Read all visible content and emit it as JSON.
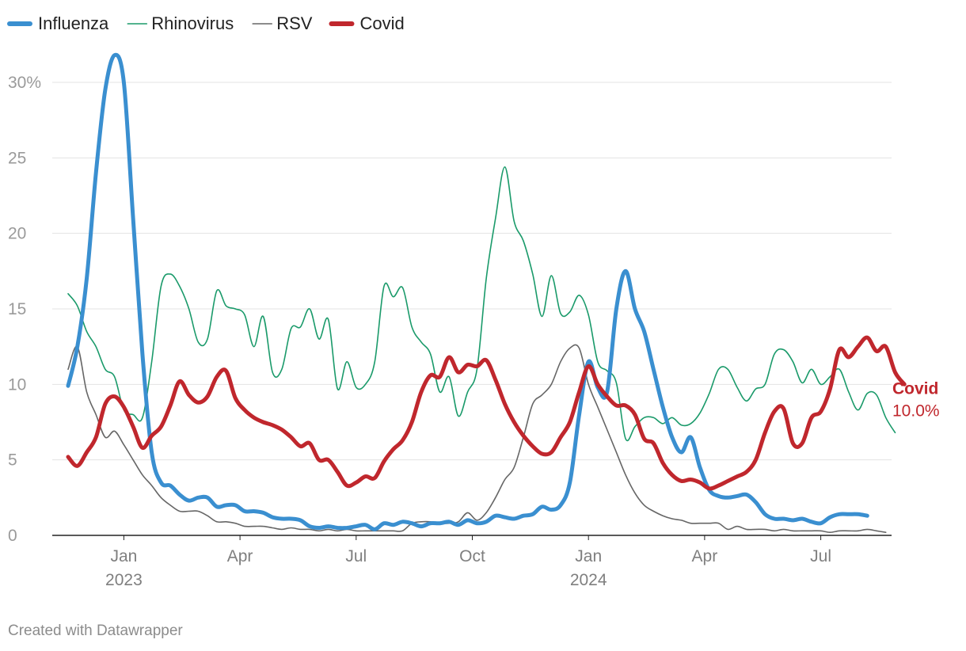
{
  "chart_data": {
    "type": "line",
    "title": "",
    "xlabel": "",
    "ylabel": "",
    "ylim": [
      0,
      32
    ],
    "y_ticks": [
      {
        "value": 0,
        "label": "0"
      },
      {
        "value": 5,
        "label": "5"
      },
      {
        "value": 10,
        "label": "10"
      },
      {
        "value": 15,
        "label": "15"
      },
      {
        "value": 20,
        "label": "20"
      },
      {
        "value": 25,
        "label": "25"
      },
      {
        "value": 30,
        "label": "30%"
      }
    ],
    "x_range": [
      0,
      87
    ],
    "x_unit": "weeks since 2022-11-14",
    "x_ticks": [
      {
        "week": 6,
        "label": "Jan",
        "sublabel": "2023"
      },
      {
        "week": 18.5,
        "label": "Apr",
        "sublabel": ""
      },
      {
        "week": 31,
        "label": "Jul",
        "sublabel": ""
      },
      {
        "week": 43.5,
        "label": "Oct",
        "sublabel": ""
      },
      {
        "week": 56,
        "label": "Jan",
        "sublabel": "2024"
      },
      {
        "week": 68.5,
        "label": "Apr",
        "sublabel": ""
      },
      {
        "week": 81,
        "label": "Jul",
        "sublabel": ""
      }
    ],
    "legend_position": "top-left",
    "series": [
      {
        "name": "Influenza",
        "color": "#3a8fd0",
        "width": 5,
        "values": [
          9.9,
          12.5,
          17,
          24,
          29.5,
          31.8,
          30,
          21,
          12,
          5.5,
          3.5,
          3.3,
          2.7,
          2.3,
          2.5,
          2.5,
          1.9,
          2,
          2,
          1.6,
          1.6,
          1.5,
          1.2,
          1.1,
          1.1,
          1,
          0.6,
          0.5,
          0.6,
          0.5,
          0.5,
          0.6,
          0.7,
          0.4,
          0.8,
          0.7,
          0.9,
          0.8,
          0.6,
          0.8,
          0.8,
          0.9,
          0.7,
          1,
          0.8,
          0.9,
          1.3,
          1.2,
          1.1,
          1.3,
          1.4,
          1.9,
          1.7,
          2,
          3.5,
          8,
          11.5,
          9.8,
          9.5,
          15,
          17.5,
          15,
          13.5,
          11,
          8.5,
          6.5,
          5.5,
          6.5,
          4.5,
          3,
          2.6,
          2.5,
          2.6,
          2.7,
          2.2,
          1.4,
          1.1,
          1.1,
          1,
          1.1,
          0.9,
          0.8,
          1.2,
          1.4,
          1.4,
          1.4,
          1.3
        ]
      },
      {
        "name": "Rhinovirus",
        "color": "#1a9a6a",
        "width": 1.6,
        "values": [
          16,
          15.2,
          13.5,
          12.5,
          11,
          10.5,
          8.3,
          8,
          7.8,
          11.5,
          16.5,
          17.3,
          16.5,
          15,
          12.8,
          13,
          16.2,
          15.2,
          15,
          14.6,
          12.5,
          14.5,
          10.8,
          11,
          13.7,
          13.8,
          15,
          13,
          14.3,
          9.7,
          11.5,
          9.8,
          10,
          11.5,
          16.5,
          15.8,
          16.4,
          13.8,
          12.8,
          12,
          9.5,
          10.5,
          7.9,
          9.5,
          11,
          17,
          21,
          24.4,
          20.8,
          19.5,
          17.3,
          14.5,
          17.2,
          14.7,
          14.8,
          15.9,
          14.6,
          11.5,
          10.9,
          10.1,
          6.4,
          7.2,
          7.8,
          7.8,
          7.4,
          7.8,
          7.3,
          7.4,
          8.1,
          9.4,
          11,
          11,
          9.8,
          8.9,
          9.7,
          10,
          12,
          12.3,
          11.5,
          10.1,
          11,
          10,
          10.5,
          11,
          9.5,
          8.3,
          9.4,
          9.3,
          7.8,
          6.8
        ]
      },
      {
        "name": "RSV",
        "color": "#666666",
        "width": 1.6,
        "values": [
          11,
          12.5,
          9.5,
          8,
          6.5,
          6.9,
          6,
          5,
          4,
          3.3,
          2.5,
          2,
          1.6,
          1.6,
          1.6,
          1.3,
          0.9,
          0.9,
          0.8,
          0.6,
          0.6,
          0.6,
          0.5,
          0.4,
          0.5,
          0.4,
          0.4,
          0.3,
          0.4,
          0.3,
          0.4,
          0.3,
          0.3,
          0.3,
          0.3,
          0.3,
          0.3,
          0.8,
          0.9,
          0.9,
          0.8,
          0.8,
          0.9,
          1.5,
          1,
          1.5,
          2.5,
          3.7,
          4.5,
          6.5,
          8.7,
          9.3,
          10,
          11.5,
          12.4,
          12.4,
          10,
          8.5,
          7,
          5.5,
          4,
          2.8,
          2,
          1.6,
          1.3,
          1.1,
          1,
          0.8,
          0.8,
          0.8,
          0.8,
          0.4,
          0.6,
          0.4,
          0.4,
          0.4,
          0.3,
          0.4,
          0.3,
          0.3,
          0.3,
          0.3,
          0.2,
          0.3,
          0.3,
          0.3,
          0.4,
          0.3,
          0.2
        ]
      },
      {
        "name": "Covid",
        "color": "#c0272d",
        "width": 5,
        "values": [
          5.2,
          4.6,
          5.5,
          6.5,
          8.7,
          9.2,
          8.5,
          7.2,
          5.8,
          6.6,
          7.2,
          8.6,
          10.2,
          9.3,
          8.8,
          9.2,
          10.5,
          10.9,
          9.1,
          8.3,
          7.8,
          7.5,
          7.3,
          7,
          6.5,
          5.9,
          6.1,
          5,
          5,
          4.2,
          3.3,
          3.5,
          3.9,
          3.8,
          4.9,
          5.7,
          6.3,
          7.5,
          9.5,
          10.6,
          10.5,
          11.8,
          10.8,
          11.3,
          11.2,
          11.6,
          10.3,
          8.7,
          7.5,
          6.6,
          5.9,
          5.4,
          5.5,
          6.5,
          7.5,
          9.5,
          11.2,
          10,
          9.2,
          8.6,
          8.6,
          8,
          6.4,
          6.1,
          4.8,
          4,
          3.6,
          3.7,
          3.5,
          3.1,
          3.3,
          3.6,
          3.9,
          4.2,
          5,
          6.8,
          8.2,
          8.4,
          6.1,
          6.1,
          7.8,
          8.2,
          9.7,
          12.3,
          11.8,
          12.5,
          13.1,
          12.2,
          12.5,
          10.8,
          10
        ]
      }
    ],
    "end_label": {
      "series": "Covid",
      "name": "Covid",
      "value": "10.0%"
    }
  },
  "footer": {
    "credit": "Created with Datawrapper"
  }
}
